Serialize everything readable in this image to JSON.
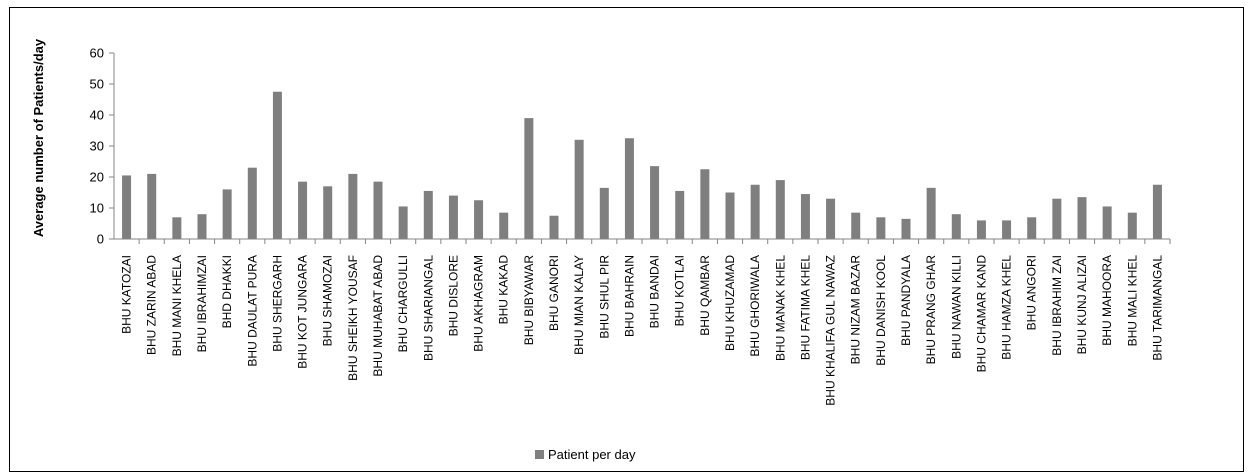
{
  "chart_data": {
    "type": "bar",
    "title": "",
    "xlabel": "",
    "ylabel": "Average  number of Patients/day",
    "ylim": [
      0,
      60
    ],
    "yticks": [
      0,
      10,
      20,
      30,
      40,
      50,
      60
    ],
    "grid": false,
    "legend_position": "bottom",
    "bar_color": "#7f7f7f",
    "categories": [
      "BHU KATOZAI",
      "BHU ZARIN ABAD",
      "BHU MANI KHELA",
      "BHU IBRAHIMZAI",
      "BHD DHAKKI",
      "BHU DAULAT PURA",
      "BHU SHERGARH",
      "BHU KOT JUNGARA",
      "BHU SHAMOZAI",
      "BHU SHEIKH YOUSAF",
      "BHU MUHABAT ABAD",
      "BHU CHARGULLI",
      "BHU SHARIANGAL",
      "BHU DISLORE",
      "BHU AKHAGRAM",
      "BHU KAKAD",
      "BHU BIBYAWAR",
      "BHU GANORI",
      "BHU MIAN KALAY",
      "BHU SHUL PIR",
      "BHU BAHRAIN",
      "BHU BANDAI",
      "BHU KOTLAI",
      "BHU QAMBAR",
      "BHU KHUZAMAD",
      "BHU GHORIWALA",
      "BHU MANAK KHEL",
      "BHU FATIMA KHEL",
      "BHU KHALIFA GUL NAWAZ",
      "BHU NIZAM BAZAR",
      "BHU DANISH KOOL",
      "BHU PANDYALA",
      "BHU PRANG GHAR",
      "BHU NAWAN KILLI",
      "BHU CHAMAR KAND",
      "BHU HAMZA KHEL",
      "BHU ANGORI",
      "BHU IBRAHIM ZAI",
      "BHU KUNJ ALIZAI",
      "BHU MAHOORA",
      "BHU MALI KHEL",
      "BHU TARIMANGAL"
    ],
    "series": [
      {
        "name": "Patient per day",
        "values": [
          20.5,
          21,
          7,
          8,
          16,
          23,
          47.5,
          18.5,
          17,
          21,
          18.5,
          10.5,
          15.5,
          14,
          12.5,
          8.5,
          39,
          7.5,
          32,
          16.5,
          32.5,
          23.5,
          15.5,
          22.5,
          15,
          17.5,
          19,
          14.5,
          13,
          8.5,
          7,
          6.5,
          16.5,
          8,
          6,
          6,
          7,
          13,
          13.5,
          10.5,
          8.5,
          17.5
        ]
      }
    ]
  }
}
